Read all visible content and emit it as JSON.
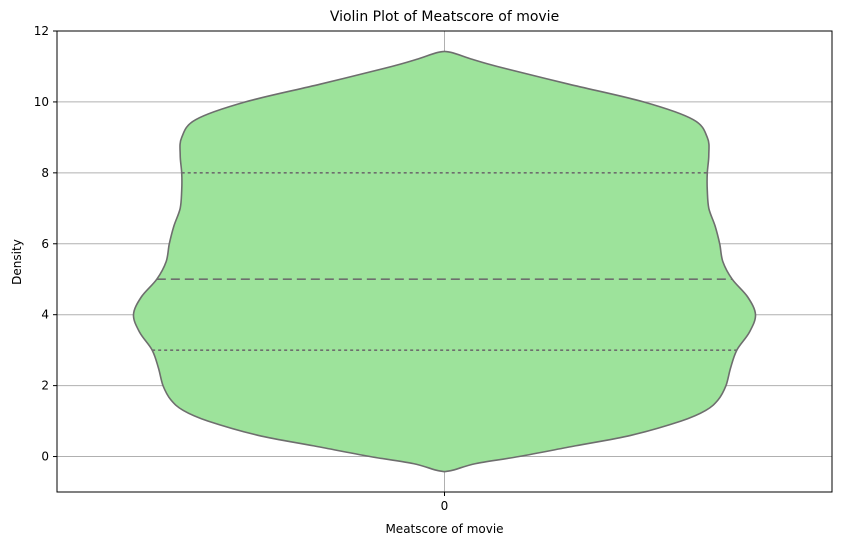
{
  "chart_data": {
    "type": "violin",
    "title": "Violin Plot of Meatscore of movie",
    "xlabel": "Meatscore of movie",
    "ylabel": "Density",
    "categories": [
      "0"
    ],
    "ylim": [
      -1,
      12
    ],
    "yticks": [
      0,
      2,
      4,
      6,
      8,
      10,
      12
    ],
    "grid": true,
    "fill_color": "#9de39b",
    "edge_color": "#6e6e6e",
    "grid_color": "#b0b0b0",
    "violin": {
      "min": -0.4,
      "max": 11.4,
      "quartiles": {
        "q1": 3,
        "median": 5,
        "q3": 8
      },
      "profile": [
        [
          -0.4,
          0.02
        ],
        [
          -0.2,
          0.1
        ],
        [
          0.0,
          0.24
        ],
        [
          0.3,
          0.42
        ],
        [
          0.6,
          0.6
        ],
        [
          1.0,
          0.76
        ],
        [
          1.3,
          0.84
        ],
        [
          1.6,
          0.88
        ],
        [
          2.0,
          0.905
        ],
        [
          2.5,
          0.92
        ],
        [
          3.0,
          0.94
        ],
        [
          3.5,
          0.98
        ],
        [
          4.0,
          1.0
        ],
        [
          4.5,
          0.975
        ],
        [
          5.0,
          0.925
        ],
        [
          5.5,
          0.895
        ],
        [
          6.0,
          0.885
        ],
        [
          6.5,
          0.87
        ],
        [
          7.0,
          0.85
        ],
        [
          7.5,
          0.845
        ],
        [
          8.0,
          0.845
        ],
        [
          8.5,
          0.85
        ],
        [
          9.0,
          0.845
        ],
        [
          9.5,
          0.8
        ],
        [
          10.0,
          0.64
        ],
        [
          10.5,
          0.4
        ],
        [
          11.0,
          0.17
        ],
        [
          11.2,
          0.09
        ],
        [
          11.4,
          0.02
        ]
      ]
    }
  }
}
